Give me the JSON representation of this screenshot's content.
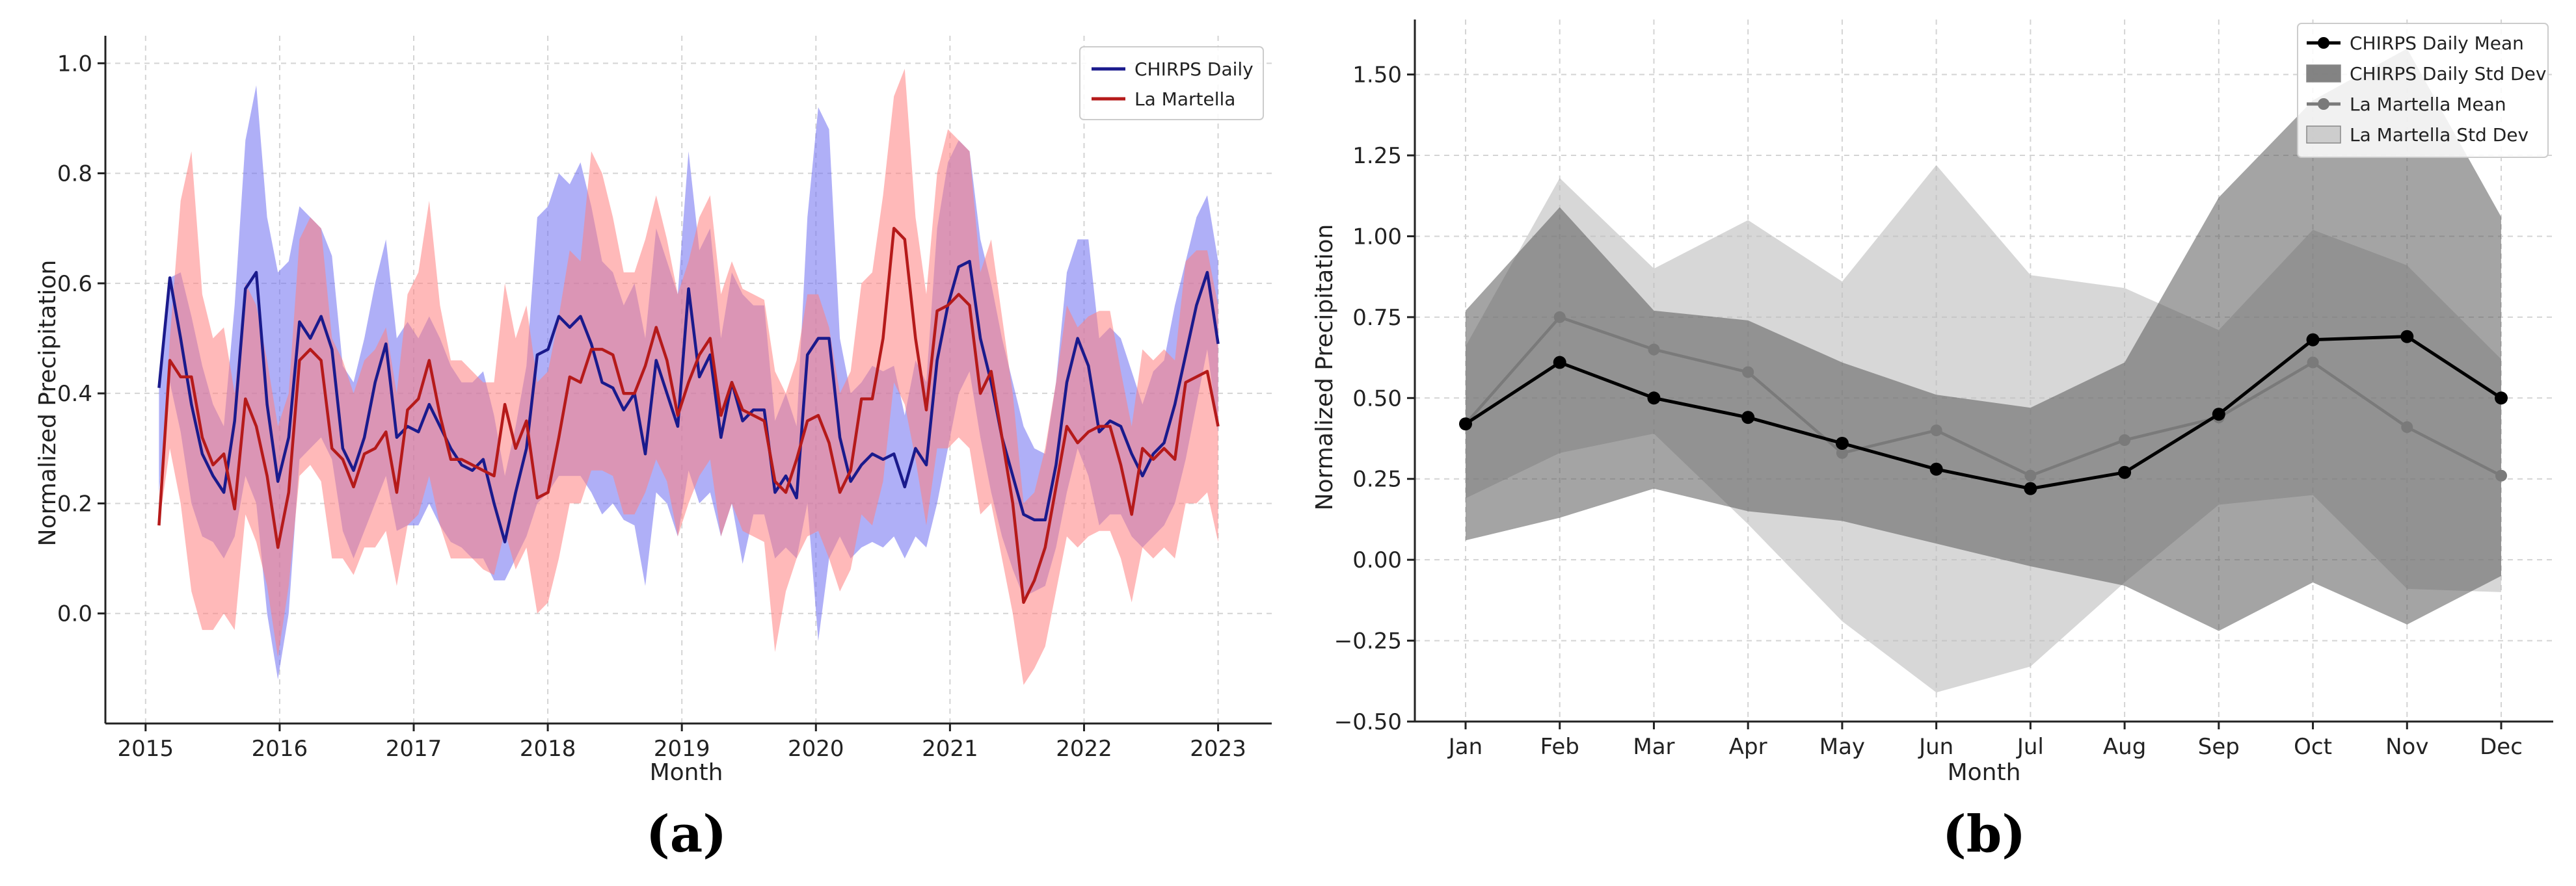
{
  "chart_data": [
    {
      "panel": "(a)",
      "type": "line",
      "xlabel": "Month",
      "ylabel": "Normalized Precipitation",
      "xlim": [
        2014.7,
        2023.4
      ],
      "ylim": [
        -0.2,
        1.05
      ],
      "xticks": [
        2015,
        2016,
        2017,
        2018,
        2019,
        2020,
        2021,
        2022,
        2023
      ],
      "xtick_labels": [
        "2015",
        "2016",
        "2017",
        "2018",
        "2019",
        "2020",
        "2021",
        "2022",
        "2023"
      ],
      "yticks": [
        0.0,
        0.2,
        0.4,
        0.6,
        0.8,
        1.0
      ],
      "ytick_labels": [
        "0.0",
        "0.2",
        "0.4",
        "0.6",
        "0.8",
        "1.0"
      ],
      "legend_position": "top-right",
      "series": [
        {
          "name": "CHIRPS Daily",
          "color": "#1a1a8c",
          "band_color": "#6d6df0",
          "values": [
            0.41,
            0.61,
            0.5,
            0.38,
            0.29,
            0.25,
            0.22,
            0.35,
            0.59,
            0.62,
            0.38,
            0.24,
            0.32,
            0.53,
            0.5,
            0.54,
            0.48,
            0.3,
            0.26,
            0.32,
            0.42,
            0.49,
            0.32,
            0.34,
            0.33,
            0.38,
            0.34,
            0.3,
            0.27,
            0.26,
            0.28,
            0.2,
            0.13,
            0.22,
            0.3,
            0.47,
            0.48,
            0.54,
            0.52,
            0.54,
            0.49,
            0.42,
            0.41,
            0.37,
            0.4,
            0.29,
            0.46,
            0.4,
            0.34,
            0.59,
            0.43,
            0.47,
            0.32,
            0.42,
            0.35,
            0.37,
            0.37,
            0.22,
            0.25,
            0.21,
            0.47,
            0.5,
            0.5,
            0.32,
            0.24,
            0.27,
            0.29,
            0.28,
            0.29,
            0.23,
            0.3,
            0.27,
            0.46,
            0.56,
            0.63,
            0.64,
            0.5,
            0.42,
            0.32,
            0.25,
            0.18,
            0.17,
            0.17,
            0.27,
            0.42,
            0.5,
            0.45,
            0.33,
            0.35,
            0.34,
            0.29,
            0.25,
            0.29,
            0.31,
            0.38,
            0.47,
            0.56,
            0.62,
            0.49
          ],
          "lower": [
            0.22,
            0.42,
            0.33,
            0.2,
            0.14,
            0.13,
            0.1,
            0.14,
            0.25,
            0.2,
            0.0,
            -0.12,
            0.0,
            0.28,
            0.3,
            0.32,
            0.28,
            0.15,
            0.1,
            0.15,
            0.2,
            0.25,
            0.15,
            0.16,
            0.16,
            0.2,
            0.16,
            0.13,
            0.12,
            0.1,
            0.1,
            0.06,
            0.06,
            0.1,
            0.14,
            0.2,
            0.22,
            0.25,
            0.25,
            0.25,
            0.22,
            0.18,
            0.2,
            0.17,
            0.16,
            0.05,
            0.22,
            0.2,
            0.14,
            0.26,
            0.2,
            0.22,
            0.14,
            0.2,
            0.09,
            0.18,
            0.18,
            0.1,
            0.12,
            0.1,
            0.2,
            -0.05,
            0.1,
            0.14,
            0.1,
            0.12,
            0.13,
            0.12,
            0.14,
            0.1,
            0.14,
            0.12,
            0.2,
            0.3,
            0.4,
            0.44,
            0.32,
            0.22,
            0.14,
            0.08,
            0.03,
            0.04,
            0.05,
            0.12,
            0.22,
            0.3,
            0.25,
            0.16,
            0.18,
            0.18,
            0.14,
            0.12,
            0.14,
            0.16,
            0.2,
            0.28,
            0.38,
            0.48,
            0.33
          ],
          "upper": [
            0.41,
            0.61,
            0.62,
            0.54,
            0.45,
            0.38,
            0.34,
            0.56,
            0.86,
            0.96,
            0.72,
            0.62,
            0.64,
            0.74,
            0.72,
            0.7,
            0.65,
            0.45,
            0.42,
            0.5,
            0.6,
            0.68,
            0.5,
            0.53,
            0.5,
            0.54,
            0.5,
            0.45,
            0.42,
            0.42,
            0.44,
            0.36,
            0.25,
            0.34,
            0.45,
            0.72,
            0.74,
            0.8,
            0.78,
            0.82,
            0.74,
            0.64,
            0.62,
            0.56,
            0.6,
            0.5,
            0.7,
            0.64,
            0.58,
            0.84,
            0.66,
            0.7,
            0.5,
            0.62,
            0.58,
            0.56,
            0.56,
            0.35,
            0.4,
            0.34,
            0.72,
            0.92,
            0.88,
            0.5,
            0.4,
            0.42,
            0.45,
            0.44,
            0.45,
            0.36,
            0.46,
            0.42,
            0.7,
            0.82,
            0.86,
            0.84,
            0.68,
            0.6,
            0.5,
            0.42,
            0.34,
            0.3,
            0.29,
            0.42,
            0.62,
            0.68,
            0.68,
            0.5,
            0.52,
            0.5,
            0.44,
            0.38,
            0.44,
            0.46,
            0.56,
            0.64,
            0.72,
            0.76,
            0.64
          ]
        },
        {
          "name": "La Martella",
          "color": "#b51a1a",
          "band_color": "#ff7f7f",
          "values": [
            0.16,
            0.46,
            0.43,
            0.43,
            0.32,
            0.27,
            0.29,
            0.19,
            0.39,
            0.34,
            0.25,
            0.12,
            0.22,
            0.46,
            0.48,
            0.46,
            0.3,
            0.28,
            0.23,
            0.29,
            0.3,
            0.33,
            0.22,
            0.37,
            0.39,
            0.46,
            0.36,
            0.28,
            0.28,
            0.27,
            0.26,
            0.25,
            0.38,
            0.3,
            0.35,
            0.21,
            0.22,
            0.32,
            0.43,
            0.42,
            0.48,
            0.48,
            0.47,
            0.4,
            0.4,
            0.45,
            0.52,
            0.46,
            0.36,
            0.42,
            0.47,
            0.5,
            0.36,
            0.42,
            0.37,
            0.36,
            0.35,
            0.24,
            0.22,
            0.28,
            0.35,
            0.36,
            0.31,
            0.22,
            0.26,
            0.39,
            0.39,
            0.5,
            0.7,
            0.68,
            0.5,
            0.37,
            0.55,
            0.56,
            0.58,
            0.56,
            0.4,
            0.44,
            0.32,
            0.2,
            0.02,
            0.06,
            0.12,
            0.23,
            0.34,
            0.31,
            0.33,
            0.34,
            0.34,
            0.27,
            0.18,
            0.3,
            0.28,
            0.3,
            0.28,
            0.42,
            0.43,
            0.44,
            0.34
          ],
          "lower": [
            0.16,
            0.3,
            0.2,
            0.04,
            -0.03,
            -0.03,
            0.0,
            -0.03,
            0.18,
            0.13,
            0.05,
            -0.08,
            0.05,
            0.25,
            0.27,
            0.24,
            0.1,
            0.1,
            0.07,
            0.12,
            0.12,
            0.15,
            0.05,
            0.16,
            0.18,
            0.25,
            0.16,
            0.1,
            0.1,
            0.1,
            0.08,
            0.07,
            0.15,
            0.08,
            0.12,
            0.0,
            0.02,
            0.1,
            0.2,
            0.2,
            0.26,
            0.26,
            0.25,
            0.18,
            0.18,
            0.22,
            0.28,
            0.24,
            0.14,
            0.2,
            0.25,
            0.28,
            0.14,
            0.2,
            0.15,
            0.14,
            0.13,
            -0.07,
            0.04,
            0.1,
            0.14,
            0.15,
            0.1,
            0.04,
            0.08,
            0.18,
            0.16,
            0.24,
            0.42,
            0.38,
            0.28,
            0.16,
            0.3,
            0.3,
            0.32,
            0.3,
            0.18,
            0.2,
            0.1,
            0.0,
            -0.13,
            -0.1,
            -0.06,
            0.04,
            0.14,
            0.12,
            0.14,
            0.15,
            0.15,
            0.1,
            0.02,
            0.12,
            0.1,
            0.12,
            0.1,
            0.2,
            0.2,
            0.22,
            0.13
          ],
          "upper": [
            0.16,
            0.5,
            0.75,
            0.84,
            0.58,
            0.5,
            0.52,
            0.4,
            0.6,
            0.56,
            0.46,
            0.34,
            0.4,
            0.68,
            0.72,
            0.7,
            0.5,
            0.46,
            0.4,
            0.46,
            0.48,
            0.52,
            0.4,
            0.58,
            0.62,
            0.75,
            0.56,
            0.46,
            0.46,
            0.44,
            0.42,
            0.42,
            0.6,
            0.5,
            0.56,
            0.42,
            0.44,
            0.54,
            0.66,
            0.64,
            0.84,
            0.8,
            0.72,
            0.62,
            0.62,
            0.68,
            0.76,
            0.68,
            0.58,
            0.64,
            0.72,
            0.76,
            0.58,
            0.64,
            0.59,
            0.58,
            0.57,
            0.44,
            0.4,
            0.46,
            0.58,
            0.58,
            0.52,
            0.4,
            0.44,
            0.6,
            0.62,
            0.76,
            0.94,
            0.99,
            0.72,
            0.58,
            0.8,
            0.88,
            0.86,
            0.84,
            0.62,
            0.68,
            0.54,
            0.4,
            0.2,
            0.22,
            0.3,
            0.42,
            0.56,
            0.52,
            0.54,
            0.55,
            0.55,
            0.44,
            0.34,
            0.48,
            0.46,
            0.48,
            0.46,
            0.64,
            0.66,
            0.66,
            0.56
          ]
        }
      ]
    },
    {
      "panel": "(b)",
      "type": "line",
      "xlabel": "Month",
      "ylabel": "Normalized Precipitation",
      "categories": [
        "Jan",
        "Feb",
        "Mar",
        "Apr",
        "May",
        "Jun",
        "Jul",
        "Aug",
        "Sep",
        "Oct",
        "Nov",
        "Dec"
      ],
      "ylim": [
        -0.5,
        1.67
      ],
      "yticks": [
        -0.5,
        -0.25,
        0.0,
        0.25,
        0.5,
        0.75,
        1.0,
        1.25,
        1.5
      ],
      "ytick_labels": [
        "−0.50",
        "−0.25",
        "0.00",
        "0.25",
        "0.50",
        "0.75",
        "1.00",
        "1.25",
        "1.50"
      ],
      "legend_position": "top-right",
      "legend": [
        "CHIRPS Daily Mean",
        "CHIRPS Daily Std Dev",
        "La Martella Mean",
        "La Martella Std Dev"
      ],
      "series": [
        {
          "name": "CHIRPS Daily Mean",
          "band_name": "CHIRPS Daily Std Dev",
          "color": "#000000",
          "band_color": "#5a5a5a",
          "values": [
            0.42,
            0.61,
            0.5,
            0.44,
            0.36,
            0.28,
            0.22,
            0.27,
            0.45,
            0.68,
            0.69,
            0.5
          ],
          "lower": [
            0.06,
            0.13,
            0.22,
            0.15,
            0.12,
            0.05,
            -0.02,
            -0.08,
            -0.22,
            -0.07,
            -0.2,
            -0.05
          ],
          "upper": [
            0.77,
            1.09,
            0.77,
            0.74,
            0.61,
            0.51,
            0.47,
            0.61,
            1.12,
            1.42,
            1.58,
            1.06
          ]
        },
        {
          "name": "La Martella Mean",
          "band_name": "La Martella Std Dev",
          "color": "#7a7a7a",
          "band_color": "#bdbdbd",
          "values": [
            0.42,
            0.75,
            0.65,
            0.58,
            0.33,
            0.4,
            0.26,
            0.37,
            0.44,
            0.61,
            0.41,
            0.26
          ],
          "lower": [
            0.19,
            0.33,
            0.39,
            0.11,
            -0.19,
            -0.41,
            -0.33,
            -0.07,
            0.17,
            0.2,
            -0.09,
            -0.1
          ],
          "upper": [
            0.66,
            1.18,
            0.9,
            1.05,
            0.86,
            1.22,
            0.88,
            0.84,
            0.71,
            1.02,
            0.91,
            0.62
          ]
        }
      ]
    }
  ]
}
